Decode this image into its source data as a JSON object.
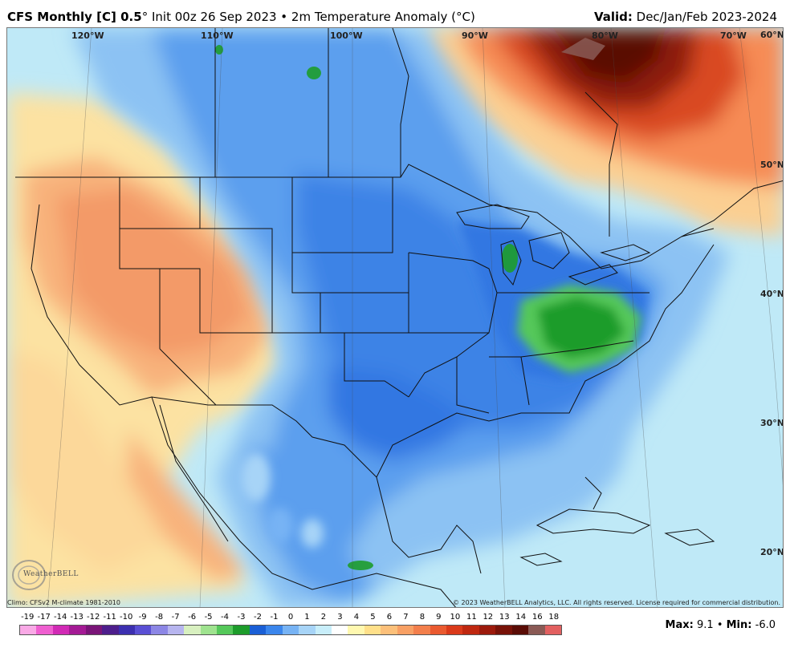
{
  "header": {
    "model": "CFS Monthly [C] 0.5",
    "init": "Init 00z 26 Sep 2023 • 2m Temperature Anomaly (°C)",
    "valid_label": "Valid:",
    "valid_value": "Dec/Jan/Feb 2023-2024"
  },
  "map": {
    "longitude_labels": [
      "120°W",
      "110°W",
      "100°W",
      "90°W",
      "80°W",
      "70°W"
    ],
    "latitude_labels": [
      "60°N",
      "50°N",
      "40°N",
      "30°N",
      "20°N"
    ]
  },
  "footer": {
    "climo": "Climo: CFSv2 M-climate 1981-2010",
    "copyright": "© 2023 WeatherBELL Analytics, LLC. All rights reserved. License required for commercial distribution."
  },
  "legend": {
    "labels": [
      "-19",
      "-17",
      "-14",
      "-13",
      "-12",
      "-11",
      "-10",
      "-9",
      "-8",
      "-7",
      "-6",
      "-5",
      "-4",
      "-3",
      "-2",
      "-1",
      "0",
      "1",
      "2",
      "3",
      "4",
      "5",
      "6",
      "7",
      "8",
      "9",
      "10",
      "11",
      "12",
      "13",
      "14",
      "16",
      "18"
    ],
    "colors": [
      "#f9a9e6",
      "#ef5fd0",
      "#d12ab5",
      "#a41a95",
      "#7a1578",
      "#4d1e8c",
      "#3c2fb0",
      "#5a4fd4",
      "#8c86e5",
      "#b7b5ef",
      "#d8f0c0",
      "#9fe38f",
      "#55c85a",
      "#1d9c2b",
      "#1a5fd6",
      "#3b86ec",
      "#77b3f4",
      "#a7d4f7",
      "#c8eefa",
      "#ffffff",
      "#fff8b0",
      "#ffe08a",
      "#fcc07a",
      "#f8a064",
      "#f37f4c",
      "#ea5a30",
      "#da3a1a",
      "#bf2810",
      "#9c1a0c",
      "#781208",
      "#5a0c06",
      "#8a5a55",
      "#e26060"
    ]
  },
  "stats": {
    "max_label": "Max:",
    "max_value": "9.1",
    "min_label": "Min:",
    "min_value": "-6.0"
  },
  "logo": {
    "text": "WeatherBELL"
  }
}
